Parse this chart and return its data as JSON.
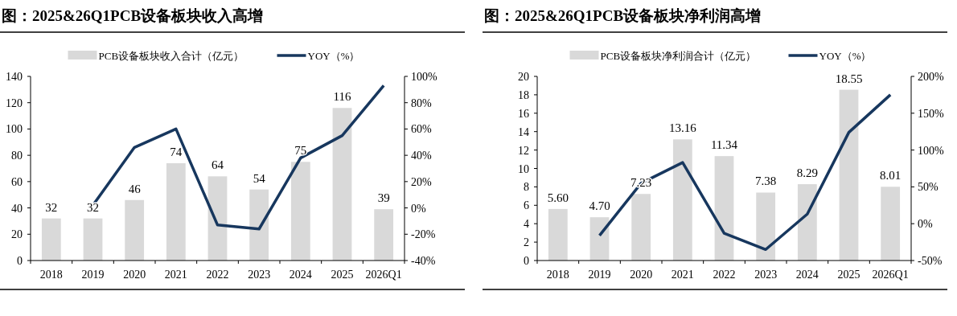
{
  "chart_data": [
    {
      "type": "bar",
      "title": "图：2025&26Q1PCB设备板块收入高增",
      "categories": [
        "2018",
        "2019",
        "2020",
        "2021",
        "2022",
        "2023",
        "2024",
        "2025",
        "2026Q1"
      ],
      "series": [
        {
          "name": "PCB设备板块收入合计（亿元）",
          "color": "#d9d9d9",
          "values": [
            32,
            32,
            46,
            74,
            64,
            54,
            75,
            116,
            39
          ],
          "value_labels": [
            "32",
            "32",
            "46",
            "74",
            "64",
            "54",
            "75",
            "116",
            "39"
          ]
        },
        {
          "name": "YOY（%）",
          "type": "line",
          "axis": "y2",
          "color": "#17375e",
          "values": [
            null,
            2,
            46,
            60,
            -13,
            -16,
            38,
            55,
            93
          ]
        }
      ],
      "ylim": [
        0,
        140
      ],
      "yticks": [
        0,
        20,
        40,
        60,
        80,
        100,
        120,
        140
      ],
      "y2lim": [
        -40,
        100
      ],
      "y2ticks": [
        {
          "value": -40,
          "label": "-40%"
        },
        {
          "value": -20,
          "label": "-20%"
        },
        {
          "value": 0,
          "label": "0%"
        },
        {
          "value": 20,
          "label": "20%"
        },
        {
          "value": 40,
          "label": "40%"
        },
        {
          "value": 60,
          "label": "60%"
        },
        {
          "value": 80,
          "label": "80%"
        },
        {
          "value": 100,
          "label": "100%"
        }
      ],
      "legend": "top"
    },
    {
      "type": "bar",
      "title": "图：2025&26Q1PCB设备板块净利润高增",
      "categories": [
        "2018",
        "2019",
        "2020",
        "2021",
        "2022",
        "2023",
        "2024",
        "2025",
        "2026Q1"
      ],
      "series": [
        {
          "name": "PCB设备板块净利润合计（亿元）",
          "color": "#d9d9d9",
          "values": [
            5.6,
            4.7,
            7.23,
            13.16,
            11.34,
            7.38,
            8.29,
            18.55,
            8.01
          ],
          "value_labels": [
            "5.60",
            "4.70",
            "7.23",
            "13.16",
            "11.34",
            "7.38",
            "8.29",
            "18.55",
            "8.01"
          ]
        },
        {
          "name": "YOY（%）",
          "type": "line",
          "axis": "y2",
          "color": "#17375e",
          "values": [
            null,
            -16,
            55,
            83,
            -13,
            -35,
            13,
            124,
            175
          ]
        }
      ],
      "ylim": [
        0,
        20
      ],
      "yticks": [
        0,
        2,
        4,
        6,
        8,
        10,
        12,
        14,
        16,
        18,
        20
      ],
      "y2lim": [
        -50,
        200
      ],
      "y2ticks": [
        {
          "value": -50,
          "label": "-50%"
        },
        {
          "value": 0,
          "label": "0%"
        },
        {
          "value": 50,
          "label": "50%"
        },
        {
          "value": 100,
          "label": "100%"
        },
        {
          "value": 150,
          "label": "150%"
        },
        {
          "value": 200,
          "label": "200%"
        }
      ],
      "legend": "top"
    }
  ]
}
